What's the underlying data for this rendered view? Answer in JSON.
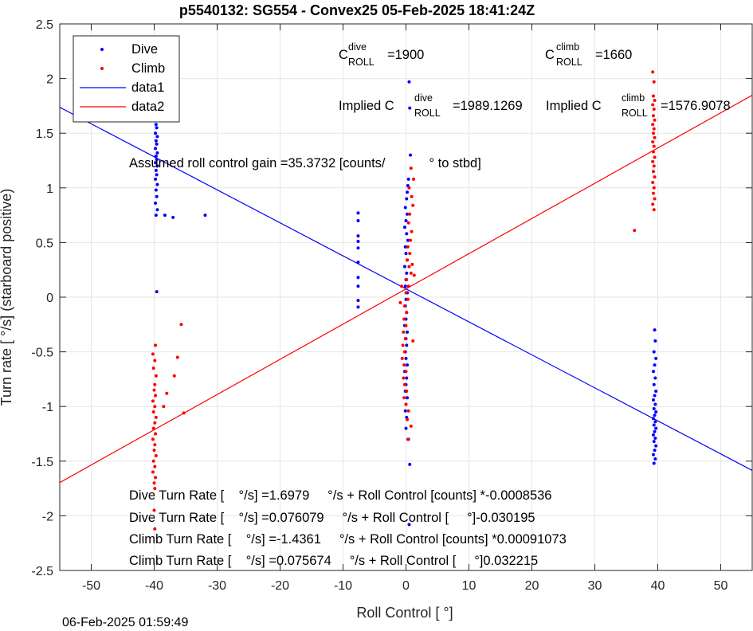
{
  "chart_data": {
    "type": "scatter",
    "title": "p5540132: SG554 - Convex25 05-Feb-2025 18:41:24Z",
    "xlabel": "Roll Control [   °]",
    "ylabel": "Turn rate [   °/s] (starboard positive)",
    "xlim": [
      -55,
      55
    ],
    "ylim": [
      -2.5,
      2.5
    ],
    "xticks": [
      -50,
      -40,
      -30,
      -20,
      -10,
      0,
      10,
      20,
      30,
      40,
      50
    ],
    "yticks": [
      -2.5,
      -2,
      -1.5,
      -1,
      -0.5,
      0,
      0.5,
      1,
      1.5,
      2,
      2.5
    ],
    "xtick_labels": [
      "-50",
      "-40",
      "-30",
      "-20",
      "-10",
      "0",
      "10",
      "20",
      "30",
      "40",
      "50"
    ],
    "ytick_labels": [
      "-2.5",
      "-2",
      "-1.5",
      "-1",
      "-0.5",
      "0",
      "0.5",
      "1",
      "1.5",
      "2",
      "2.5"
    ],
    "grid": true,
    "legend_position": "top-left",
    "legend": [
      {
        "label": "Dive",
        "kind": "marker",
        "color": "#0000ff"
      },
      {
        "label": "Climb",
        "kind": "marker",
        "color": "#ff0000"
      },
      {
        "label": "data1",
        "kind": "line",
        "color": "#0000ff"
      },
      {
        "label": "data2",
        "kind": "line",
        "color": "#ff0000"
      }
    ],
    "lines": [
      {
        "name": "data1",
        "color": "#0000ff",
        "slope": -0.030195,
        "intercept": 0.076079
      },
      {
        "name": "data2",
        "color": "#ff0000",
        "slope": 0.032215,
        "intercept": 0.075674
      }
    ],
    "series": [
      {
        "name": "Dive",
        "color": "#0000ff",
        "points": [
          [
            -39.7,
            2.01
          ],
          [
            -39.6,
            1.84
          ],
          [
            -39.8,
            1.8
          ],
          [
            -39.5,
            1.76
          ],
          [
            -39.7,
            1.72
          ],
          [
            -39.6,
            1.68
          ],
          [
            -39.8,
            1.65
          ],
          [
            -39.5,
            1.62
          ],
          [
            -39.7,
            1.58
          ],
          [
            -39.6,
            1.55
          ],
          [
            -39.8,
            1.5
          ],
          [
            -39.5,
            1.47
          ],
          [
            -39.7,
            1.43
          ],
          [
            -39.6,
            1.4
          ],
          [
            -39.8,
            1.36
          ],
          [
            -39.5,
            1.32
          ],
          [
            -39.7,
            1.29
          ],
          [
            -39.6,
            1.26
          ],
          [
            -39.8,
            1.23
          ],
          [
            -39.5,
            1.2
          ],
          [
            -39.7,
            1.16
          ],
          [
            -39.6,
            1.12
          ],
          [
            -39.8,
            1.08
          ],
          [
            -39.5,
            1.03
          ],
          [
            -39.7,
            0.98
          ],
          [
            -39.6,
            0.92
          ],
          [
            -39.8,
            0.86
          ],
          [
            -39.5,
            0.8
          ],
          [
            -39.7,
            0.75
          ],
          [
            -39.6,
            0.05
          ],
          [
            -38.3,
            0.75
          ],
          [
            -37.0,
            0.73
          ],
          [
            -31.9,
            0.75
          ],
          [
            -7.6,
            0.77
          ],
          [
            -7.6,
            0.7
          ],
          [
            -7.6,
            0.56
          ],
          [
            -7.6,
            0.51
          ],
          [
            -7.6,
            0.45
          ],
          [
            -7.6,
            0.32
          ],
          [
            -7.6,
            0.18
          ],
          [
            -7.6,
            0.1
          ],
          [
            -7.6,
            -0.03
          ],
          [
            -7.6,
            -0.09
          ],
          [
            0.5,
            1.97
          ],
          [
            0.6,
            1.73
          ],
          [
            0.7,
            1.3
          ],
          [
            0.4,
            1.08
          ],
          [
            0.3,
            1.02
          ],
          [
            0.2,
            0.96
          ],
          [
            0.1,
            0.9
          ],
          [
            -0.1,
            0.82
          ],
          [
            0.2,
            0.76
          ],
          [
            0.0,
            0.7
          ],
          [
            -0.2,
            0.64
          ],
          [
            0.1,
            0.58
          ],
          [
            0.3,
            0.52
          ],
          [
            -0.1,
            0.46
          ],
          [
            0.0,
            0.4
          ],
          [
            0.2,
            0.34
          ],
          [
            -0.2,
            0.28
          ],
          [
            0.1,
            0.22
          ],
          [
            0.0,
            0.16
          ],
          [
            -0.1,
            0.1
          ],
          [
            0.2,
            0.04
          ],
          [
            0.0,
            -0.02
          ],
          [
            -0.1,
            -0.08
          ],
          [
            0.1,
            -0.14
          ],
          [
            0.0,
            -0.2
          ],
          [
            -0.2,
            -0.26
          ],
          [
            0.2,
            -0.32
          ],
          [
            0.0,
            -0.38
          ],
          [
            0.1,
            -0.44
          ],
          [
            -0.1,
            -0.5
          ],
          [
            0.0,
            -0.56
          ],
          [
            0.2,
            -0.62
          ],
          [
            -0.2,
            -0.68
          ],
          [
            0.1,
            -0.74
          ],
          [
            0.0,
            -0.8
          ],
          [
            -0.1,
            -0.86
          ],
          [
            0.2,
            -0.92
          ],
          [
            0.0,
            -0.98
          ],
          [
            -0.1,
            -1.04
          ],
          [
            0.1,
            -1.1
          ],
          [
            0.0,
            -1.2
          ],
          [
            0.4,
            -1.3
          ],
          [
            0.6,
            -1.53
          ],
          [
            0.5,
            -2.08
          ],
          [
            39.5,
            -0.3
          ],
          [
            39.6,
            -0.4
          ],
          [
            39.4,
            -0.5
          ],
          [
            39.7,
            -0.56
          ],
          [
            39.5,
            -0.62
          ],
          [
            39.3,
            -0.68
          ],
          [
            39.6,
            -0.74
          ],
          [
            39.4,
            -0.8
          ],
          [
            39.7,
            -0.86
          ],
          [
            39.5,
            -0.9
          ],
          [
            39.3,
            -0.94
          ],
          [
            39.6,
            -0.98
          ],
          [
            39.4,
            -1.02
          ],
          [
            39.7,
            -1.05
          ],
          [
            39.5,
            -1.08
          ],
          [
            39.3,
            -1.11
          ],
          [
            39.6,
            -1.14
          ],
          [
            39.4,
            -1.17
          ],
          [
            39.7,
            -1.2
          ],
          [
            39.5,
            -1.23
          ],
          [
            39.3,
            -1.26
          ],
          [
            39.6,
            -1.29
          ],
          [
            39.4,
            -1.32
          ],
          [
            39.7,
            -1.36
          ],
          [
            39.5,
            -1.4
          ],
          [
            39.3,
            -1.44
          ],
          [
            39.6,
            -1.48
          ],
          [
            39.4,
            -1.52
          ]
        ]
      },
      {
        "name": "Climb",
        "color": "#ff0000",
        "points": [
          [
            39.2,
            2.06
          ],
          [
            39.4,
            1.97
          ],
          [
            39.3,
            1.84
          ],
          [
            39.5,
            1.8
          ],
          [
            39.2,
            1.76
          ],
          [
            39.4,
            1.72
          ],
          [
            39.3,
            1.66
          ],
          [
            39.5,
            1.62
          ],
          [
            39.2,
            1.58
          ],
          [
            39.4,
            1.54
          ],
          [
            39.3,
            1.5
          ],
          [
            39.5,
            1.46
          ],
          [
            39.2,
            1.42
          ],
          [
            39.4,
            1.38
          ],
          [
            39.3,
            1.33
          ],
          [
            39.5,
            1.28
          ],
          [
            39.2,
            1.24
          ],
          [
            39.4,
            1.2
          ],
          [
            39.3,
            1.15
          ],
          [
            39.5,
            1.1
          ],
          [
            39.2,
            1.05
          ],
          [
            39.4,
            1.0
          ],
          [
            39.3,
            0.95
          ],
          [
            39.5,
            0.9
          ],
          [
            39.2,
            0.85
          ],
          [
            39.4,
            0.8
          ],
          [
            36.3,
            0.61
          ],
          [
            -39.9,
            -1.15
          ],
          [
            -40.1,
            -1.2
          ],
          [
            -39.8,
            -1.25
          ],
          [
            -40.2,
            -1.3
          ],
          [
            -39.9,
            -1.35
          ],
          [
            -40.0,
            -1.4
          ],
          [
            -39.7,
            -1.45
          ],
          [
            -40.1,
            -1.5
          ],
          [
            -39.9,
            -1.55
          ],
          [
            -40.2,
            -1.6
          ],
          [
            -39.8,
            -1.65
          ],
          [
            -40.0,
            -1.7
          ],
          [
            -39.9,
            -1.75
          ],
          [
            -39.7,
            -1.1
          ],
          [
            -40.1,
            -1.05
          ],
          [
            -39.9,
            -1.0
          ],
          [
            -40.2,
            -0.95
          ],
          [
            -39.8,
            -0.9
          ],
          [
            -40.0,
            -0.85
          ],
          [
            -39.9,
            -0.8
          ],
          [
            -39.7,
            -0.72
          ],
          [
            -40.1,
            -0.65
          ],
          [
            -39.9,
            -0.58
          ],
          [
            -40.2,
            -0.52
          ],
          [
            -39.8,
            -0.44
          ],
          [
            -40.0,
            -1.95
          ],
          [
            -39.9,
            -2.12
          ],
          [
            -35.7,
            -0.25
          ],
          [
            -35.3,
            -1.06
          ],
          [
            -36.3,
            -0.55
          ],
          [
            -36.8,
            -0.72
          ],
          [
            -38.0,
            -0.88
          ],
          [
            -38.5,
            -1.0
          ],
          [
            0.8,
            1.18
          ],
          [
            1.2,
            1.08
          ],
          [
            0.5,
            1.0
          ],
          [
            0.9,
            0.92
          ],
          [
            1.1,
            0.84
          ],
          [
            0.6,
            0.76
          ],
          [
            0.4,
            0.68
          ],
          [
            0.9,
            0.6
          ],
          [
            0.7,
            0.52
          ],
          [
            0.3,
            0.46
          ],
          [
            0.6,
            0.4
          ],
          [
            0.2,
            0.34
          ],
          [
            0.5,
            0.28
          ],
          [
            0.8,
            0.22
          ],
          [
            0.1,
            0.16
          ],
          [
            0.4,
            0.1
          ],
          [
            0.0,
            0.04
          ],
          [
            0.3,
            -0.02
          ],
          [
            -0.2,
            -0.08
          ],
          [
            0.1,
            -0.14
          ],
          [
            -0.3,
            -0.2
          ],
          [
            0.0,
            -0.26
          ],
          [
            -0.4,
            -0.32
          ],
          [
            -0.1,
            -0.38
          ],
          [
            -0.5,
            -0.44
          ],
          [
            -0.2,
            -0.5
          ],
          [
            -0.6,
            -0.56
          ],
          [
            -0.3,
            -0.62
          ],
          [
            0.0,
            -0.68
          ],
          [
            -0.4,
            -0.74
          ],
          [
            -0.2,
            -0.8
          ],
          [
            0.1,
            -0.86
          ],
          [
            -0.3,
            -0.92
          ],
          [
            0.0,
            -0.98
          ],
          [
            0.4,
            -1.04
          ],
          [
            0.2,
            -1.12
          ],
          [
            0.8,
            -1.18
          ],
          [
            0.3,
            -1.3
          ],
          [
            1.0,
            0.3
          ],
          [
            1.3,
            0.2
          ],
          [
            -0.7,
            0.1
          ],
          [
            -0.9,
            -0.05
          ],
          [
            1.1,
            -0.4
          ]
        ]
      }
    ],
    "annotations": [
      {
        "id": "c_dive",
        "base": "C",
        "sup": "dive",
        "sub": "ROLL",
        "value": "=1900"
      },
      {
        "id": "c_climb",
        "base": "C",
        "sup": "climb",
        "sub": "ROLL",
        "value": "=1660"
      },
      {
        "id": "implied_dive",
        "base": "Implied C",
        "sup": "dive",
        "sub": "ROLL",
        "value": "=1989.1269"
      },
      {
        "id": "implied_climb",
        "base": "Implied C",
        "sup": "climb",
        "sub": "ROLL",
        "value": "=1576.9078"
      },
      {
        "id": "gain",
        "text": "Assumed roll control gain =35.3732 [counts/            ° to stbd]"
      },
      {
        "id": "dive_counts",
        "text": "Dive Turn Rate [    °/s] =1.6979     °/s + Roll Control [counts] *-0.0008536"
      },
      {
        "id": "dive_deg",
        "text": "Dive Turn Rate [    °/s] =0.076079     °/s + Roll Control [     °]-0.030195"
      },
      {
        "id": "climb_counts",
        "text": "Climb Turn Rate [    °/s] =-1.4361     °/s + Roll Control [counts] *0.00091073"
      },
      {
        "id": "climb_deg",
        "text": "Climb Turn Rate [    °/s] =0.075674     °/s + Roll Control [     °]0.032215"
      }
    ]
  },
  "footer": {
    "timestamp": "06-Feb-2025 01:59:49"
  }
}
